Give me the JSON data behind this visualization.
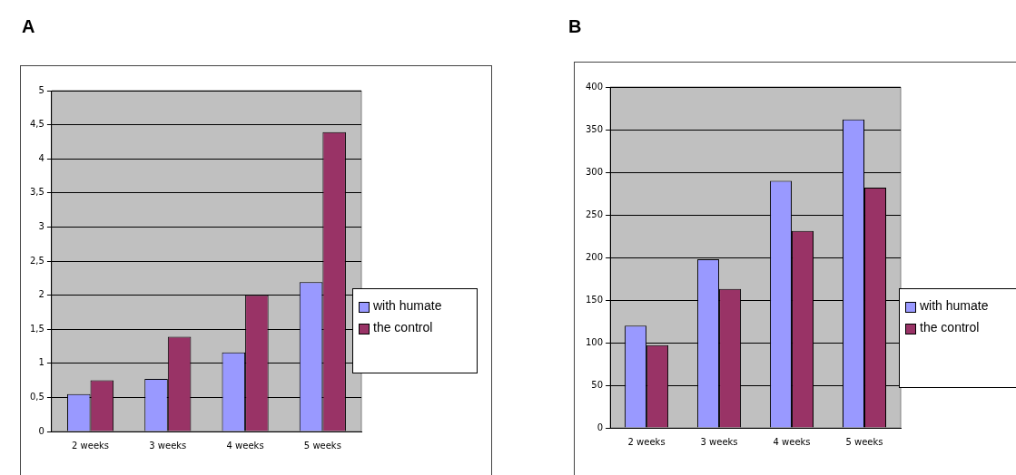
{
  "chart_data": [
    {
      "type": "bar",
      "title": "A",
      "categories": [
        "2 weeks",
        "3 weeks",
        "4 weeks",
        "5 weeks"
      ],
      "series": [
        {
          "name": "with humate",
          "color": "#9999ff",
          "values": [
            0.55,
            0.77,
            1.16,
            2.19
          ]
        },
        {
          "name": "the control",
          "color": "#993366",
          "values": [
            0.75,
            1.39,
            2.0,
            4.39
          ]
        }
      ],
      "ylim": [
        0,
        5
      ],
      "yticks": [
        0,
        {
          "value": 0.5,
          "label": "0,5"
        },
        1,
        {
          "value": 1.5,
          "label": "1,5"
        },
        2,
        {
          "value": 2.5,
          "label": "2,5"
        },
        3,
        {
          "value": 3.5,
          "label": "3,5"
        },
        4,
        {
          "value": 4.5,
          "label": "4,5"
        },
        5
      ],
      "grid": "y",
      "legend": "right"
    },
    {
      "type": "bar",
      "title": "B",
      "categories": [
        "2 weeks",
        "3 weeks",
        "4 weeks",
        "5 weeks"
      ],
      "series": [
        {
          "name": "with humate",
          "color": "#9999ff",
          "values": [
            120,
            198,
            290,
            362
          ]
        },
        {
          "name": "the control",
          "color": "#993366",
          "values": [
            97,
            163,
            231,
            282
          ]
        }
      ],
      "ylim": [
        0,
        400
      ],
      "yticks": [
        0,
        50,
        100,
        150,
        200,
        250,
        300,
        350,
        400
      ],
      "grid": "y",
      "legend": "right"
    }
  ]
}
